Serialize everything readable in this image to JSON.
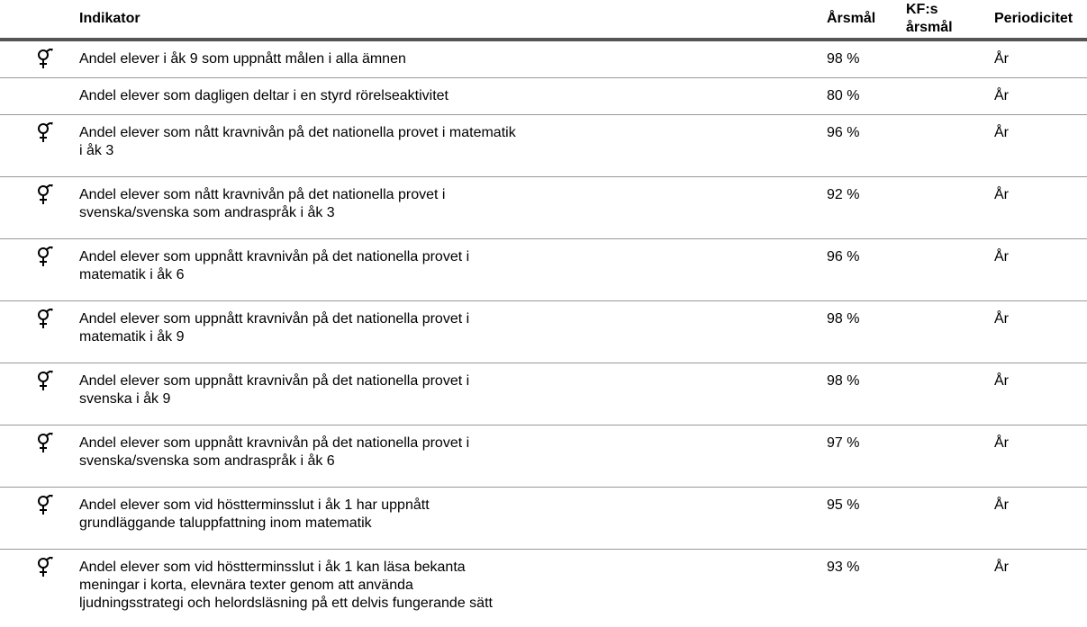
{
  "header": {
    "indicator": "Indikator",
    "target": "Årsmål",
    "kf_target": "KF:s årsmål",
    "period": "Periodicitet"
  },
  "rows": [
    {
      "indicator": "Andel elever i åk 9 som uppnått målen i alla ämnen",
      "target": "98 %",
      "period": "År"
    },
    {
      "indicator": "Andel elever som dagligen deltar i en styrd rörelseaktivitet",
      "target": "80 %",
      "period": "År"
    },
    {
      "indicator": "Andel elever som nått kravnivån på det nationella provet i matematik\ni åk 3",
      "target": "96 %",
      "period": "År"
    },
    {
      "indicator": "Andel elever som nått kravnivån på det nationella provet i\nsvenska/svenska som andraspråk i åk 3",
      "target": "92 %",
      "period": "År"
    },
    {
      "indicator": "Andel elever som uppnått kravnivån på det nationella provet i\nmatematik i åk 6",
      "target": "96 %",
      "period": "År"
    },
    {
      "indicator": "Andel elever som uppnått kravnivån på det nationella provet i\nmatematik i åk 9",
      "target": "98 %",
      "period": "År"
    },
    {
      "indicator": "Andel elever som uppnått kravnivån på det nationella provet i\nsvenska i åk 9",
      "target": "98 %",
      "period": "År"
    },
    {
      "indicator": "Andel elever som uppnått kravnivån på det nationella provet i\nsvenska/svenska som andraspråk i åk 6",
      "target": "97 %",
      "period": "År"
    },
    {
      "indicator": "Andel elever som vid höstterminsslut i åk 1 har uppnått\ngrundläggande taluppfattning inom matematik",
      "target": "95 %",
      "period": "År"
    },
    {
      "indicator": "Andel elever som vid höstterminsslut i åk 1 kan läsa bekanta\nmeningar i korta, elevnära texter genom att använda\nljudningsstrategi och helordsläsning på ett delvis fungerande sätt",
      "target": "93 %",
      "period": "År"
    }
  ]
}
